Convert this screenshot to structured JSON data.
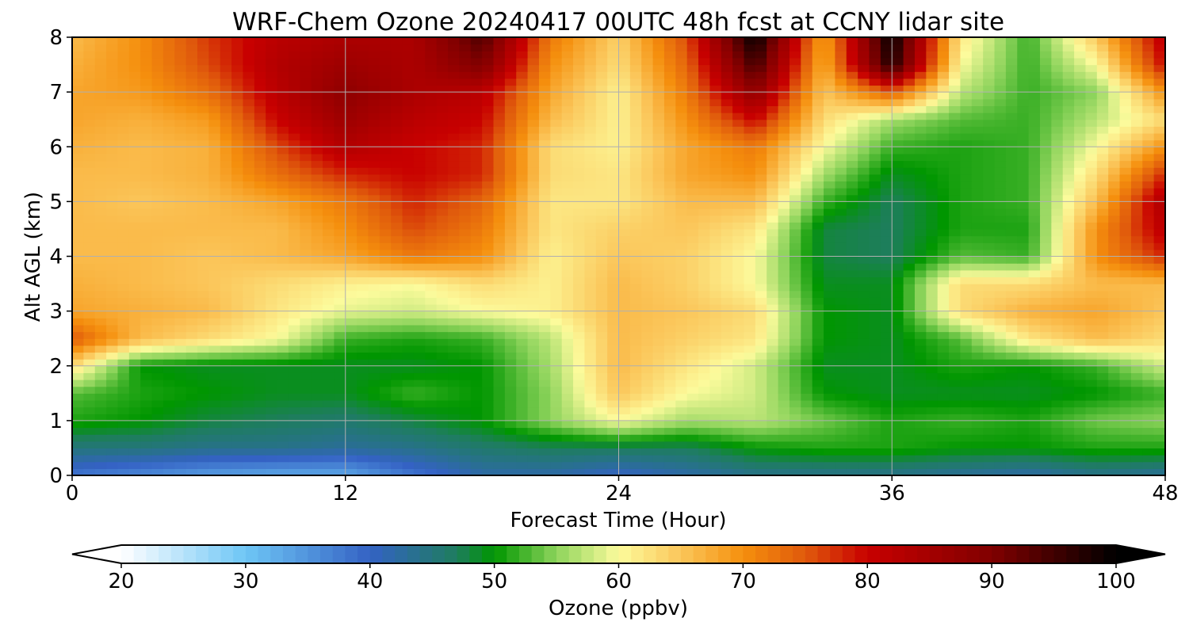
{
  "chart_data": {
    "type": "heatmap",
    "title": "WRF-Chem Ozone  20240417 00UTC 48h fcst at CCNY lidar site",
    "xlabel": "Forecast Time (Hour)",
    "ylabel": "Alt AGL (km)",
    "xlim": [
      0,
      48
    ],
    "ylim": [
      0,
      8
    ],
    "xticks": [
      "0",
      "12",
      "24",
      "36",
      "48"
    ],
    "yticks": [
      "0",
      "1",
      "2",
      "3",
      "4",
      "5",
      "6",
      "7",
      "8"
    ],
    "grid": true,
    "x": [
      0,
      3,
      6,
      9,
      12,
      15,
      18,
      21,
      24,
      27,
      30,
      33,
      36,
      39,
      42,
      45,
      48
    ],
    "y": [
      0,
      0.5,
      1,
      1.5,
      2,
      2.5,
      3,
      3.5,
      4,
      4.5,
      5,
      5.5,
      6,
      6.5,
      7,
      7.5,
      8
    ],
    "z": [
      [
        38,
        36,
        34,
        33,
        33,
        38,
        42,
        42,
        40,
        42,
        44,
        44,
        44,
        43,
        42,
        44,
        43
      ],
      [
        45,
        45,
        44,
        44,
        43,
        44,
        46,
        47,
        47,
        47,
        50,
        51,
        51,
        50,
        50,
        51,
        51
      ],
      [
        51,
        50,
        48,
        47,
        46,
        48,
        50,
        55,
        60,
        56,
        57,
        54,
        51,
        52,
        51,
        54,
        55
      ],
      [
        53,
        51,
        50,
        49,
        49,
        52,
        50,
        55,
        65,
        60,
        58,
        50,
        49,
        49,
        49,
        50,
        52
      ],
      [
        63,
        50,
        49,
        49,
        49,
        49,
        50,
        56,
        66,
        62,
        58,
        49,
        49,
        51,
        50,
        52,
        58
      ],
      [
        75,
        66,
        63,
        60,
        52,
        51,
        52,
        57,
        66,
        64,
        62,
        50,
        49,
        53,
        62,
        66,
        63
      ],
      [
        68,
        67,
        66,
        62,
        59,
        58,
        60,
        61,
        66,
        65,
        63,
        50,
        49,
        63,
        67,
        68,
        65
      ],
      [
        67,
        66,
        65,
        63,
        61,
        60,
        63,
        61,
        66,
        64,
        60,
        49,
        49,
        63,
        63,
        66,
        66
      ],
      [
        66,
        66,
        65,
        66,
        68,
        72,
        70,
        61,
        65,
        64,
        60,
        48,
        47,
        53,
        52,
        70,
        78
      ],
      [
        66,
        66,
        66,
        66,
        70,
        76,
        72,
        62,
        64,
        65,
        62,
        48,
        47,
        51,
        51,
        70,
        82
      ],
      [
        66,
        65,
        66,
        68,
        72,
        78,
        74,
        62,
        62,
        66,
        66,
        52,
        47,
        51,
        52,
        66,
        84
      ],
      [
        66,
        66,
        67,
        73,
        78,
        80,
        78,
        63,
        62,
        68,
        70,
        56,
        49,
        51,
        52,
        63,
        78
      ],
      [
        67,
        66,
        67,
        76,
        83,
        80,
        78,
        63,
        61,
        68,
        72,
        60,
        52,
        51,
        52,
        60,
        70
      ],
      [
        68,
        67,
        69,
        80,
        86,
        82,
        80,
        66,
        61,
        70,
        80,
        63,
        56,
        53,
        52,
        57,
        63
      ],
      [
        68,
        69,
        73,
        82,
        88,
        84,
        82,
        68,
        61,
        72,
        88,
        65,
        75,
        57,
        52,
        55,
        70
      ],
      [
        67,
        70,
        76,
        83,
        86,
        84,
        90,
        70,
        63,
        74,
        95,
        67,
        98,
        60,
        52,
        60,
        80
      ],
      [
        66,
        70,
        77,
        82,
        84,
        84,
        94,
        72,
        64,
        76,
        100,
        68,
        100,
        62,
        52,
        65,
        82
      ]
    ],
    "colorbar": {
      "label": "Ozone  (ppbv)",
      "range": [
        20,
        100
      ],
      "extend": "both",
      "ticks": [
        "20",
        "30",
        "40",
        "50",
        "60",
        "70",
        "80",
        "90",
        "100"
      ],
      "stops": [
        {
          "v": 20,
          "c": "#ffffff"
        },
        {
          "v": 30,
          "c": "#6ec6f5"
        },
        {
          "v": 40,
          "c": "#3462c4"
        },
        {
          "v": 47,
          "c": "#1e7d5e"
        },
        {
          "v": 50,
          "c": "#009600"
        },
        {
          "v": 55,
          "c": "#8ed45c"
        },
        {
          "v": 60,
          "c": "#fcfb9c"
        },
        {
          "v": 65,
          "c": "#fbc65a"
        },
        {
          "v": 70,
          "c": "#f58f0d"
        },
        {
          "v": 75,
          "c": "#e05a0c"
        },
        {
          "v": 80,
          "c": "#c80000"
        },
        {
          "v": 90,
          "c": "#800000"
        },
        {
          "v": 100,
          "c": "#000000"
        }
      ]
    }
  }
}
